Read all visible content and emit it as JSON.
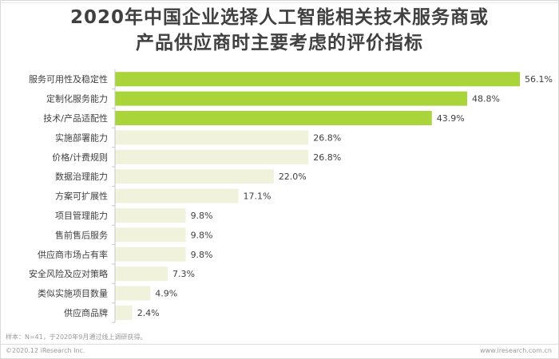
{
  "header": {
    "title_line1": "2020年中国企业选择人工智能相关技术服务商或",
    "title_line2": "产品供应商时主要考虑的评价指标"
  },
  "colors": {
    "highlight": "#a9d43a",
    "light": "#f1f2dc",
    "axis": "#c8c8c8",
    "text": "#404040"
  },
  "chart_data": {
    "type": "bar",
    "orientation": "horizontal",
    "categories": [
      "服务可用性及稳定性",
      "定制化服务能力",
      "技术/产品适配性",
      "实施部署能力",
      "价格/计费规则",
      "数据治理能力",
      "方案可扩展性",
      "项目管理能力",
      "售前售后服务",
      "供应商市场占有率",
      "安全风险及应对策略",
      "类似实施项目数量",
      "供应商品牌"
    ],
    "values": [
      56.1,
      48.8,
      43.9,
      26.8,
      26.8,
      22.0,
      17.1,
      9.8,
      9.8,
      9.8,
      7.3,
      4.9,
      2.4
    ],
    "value_labels": [
      "56.1%",
      "48.8%",
      "43.9%",
      "26.8%",
      "26.8%",
      "22.0%",
      "17.1%",
      "9.8%",
      "9.8%",
      "9.8%",
      "7.3%",
      "4.9%",
      "2.4%"
    ],
    "highlighted_count": 3,
    "xlim": [
      0,
      56.1
    ]
  },
  "footnote": "样本：N=41，于2020年9月通过线上调研获得。",
  "footer": {
    "left": "©2020.12 iResearch Inc.",
    "right": "www.iresearch.com.cn"
  }
}
